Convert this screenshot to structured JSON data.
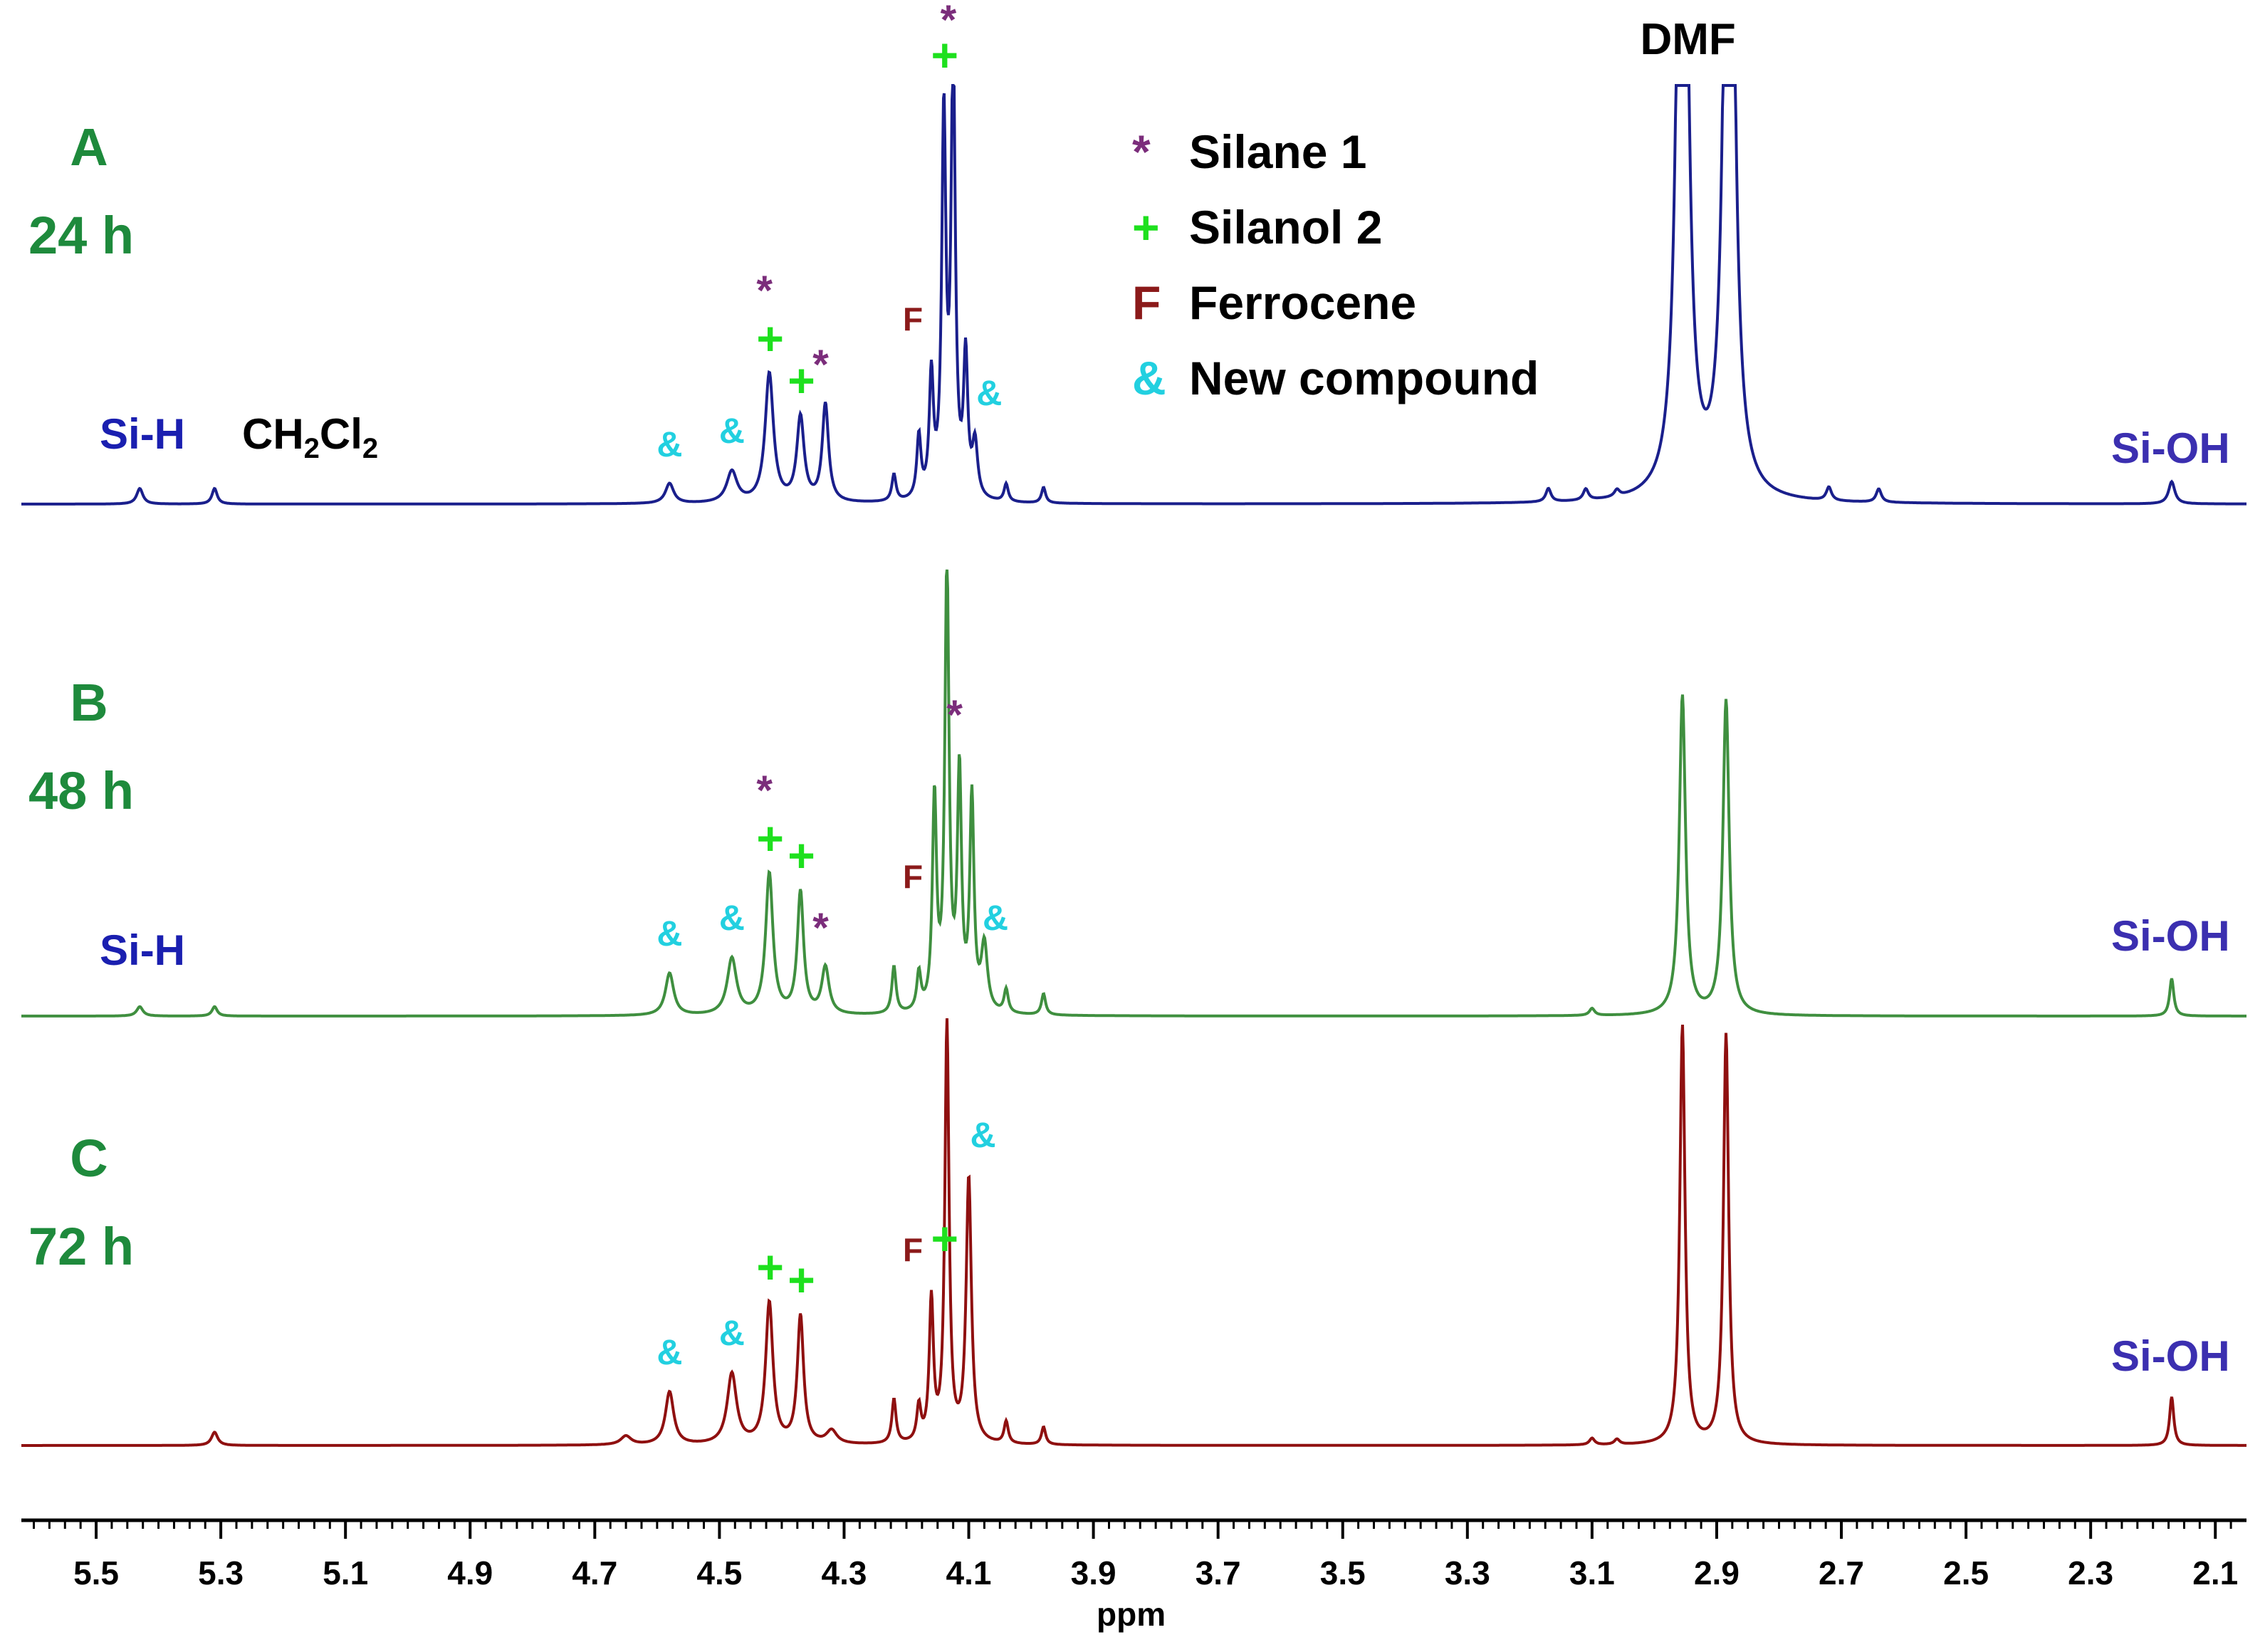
{
  "colors": {
    "spectrum_A": "#1a1f8c",
    "spectrum_B": "#3f8f3f",
    "spectrum_C": "#8f1010",
    "sample_label": "#1e8a3c",
    "silane": "#7b2d7b",
    "silanol": "#1ee01e",
    "ferrocene": "#8b1a1a",
    "new_compound": "#22d0e0",
    "si_h_label": "#1a1fb0",
    "si_oh_label": "#3b2fb0"
  },
  "samples": [
    {
      "letter": "A",
      "time": "24 h"
    },
    {
      "letter": "B",
      "time": "48 h"
    },
    {
      "letter": "C",
      "time": "72 h"
    }
  ],
  "legend": [
    {
      "symbol": "*",
      "label": "Silane 1",
      "color_key": "silane"
    },
    {
      "symbol": "+",
      "label": "Silanol 2",
      "color_key": "silanol"
    },
    {
      "symbol": "F",
      "label": "Ferrocene",
      "color_key": "ferrocene"
    },
    {
      "symbol": "&",
      "label": "New compound",
      "color_key": "new_compound"
    }
  ],
  "labels": {
    "dmf": "DMF",
    "si_h": "Si-H",
    "si_oh": "Si-OH",
    "ch2cl2_ch": "CH",
    "ch2cl2_sub1": "2",
    "ch2cl2_cl": "Cl",
    "ch2cl2_sub2": "2"
  },
  "chart_data": {
    "type": "line",
    "xlabel": "ppm",
    "xlim": [
      5.62,
      2.05
    ],
    "x_reversed": true,
    "x_ticks": [
      "5.5",
      "5.3",
      "5.1",
      "4.9",
      "4.7",
      "4.5",
      "4.3",
      "4.1",
      "3.9",
      "3.7",
      "3.5",
      "3.3",
      "3.1",
      "2.9",
      "2.7",
      "2.5",
      "2.3",
      "2.1"
    ],
    "tick_values": [
      5.5,
      5.3,
      5.1,
      4.9,
      4.7,
      4.5,
      4.3,
      4.1,
      3.9,
      3.7,
      3.5,
      3.3,
      3.1,
      2.9,
      2.7,
      2.5,
      2.3,
      2.1
    ],
    "y_units": "relative intensity (stacked spectra, DMF peaks of A truncated)",
    "series": [
      {
        "name": "A",
        "peaks": [
          {
            "ppm": 5.43,
            "h": 0.035,
            "w": 0.006
          },
          {
            "ppm": 5.31,
            "h": 0.035,
            "w": 0.005
          },
          {
            "ppm": 4.58,
            "h": 0.045,
            "w": 0.008
          },
          {
            "ppm": 4.48,
            "h": 0.07,
            "w": 0.01
          },
          {
            "ppm": 4.42,
            "h": 0.29,
            "w": 0.008
          },
          {
            "ppm": 4.37,
            "h": 0.19,
            "w": 0.007
          },
          {
            "ppm": 4.33,
            "h": 0.22,
            "w": 0.006
          },
          {
            "ppm": 4.22,
            "h": 0.06,
            "w": 0.004
          },
          {
            "ppm": 4.18,
            "h": 0.14,
            "w": 0.004
          },
          {
            "ppm": 4.16,
            "h": 0.27,
            "w": 0.004
          },
          {
            "ppm": 4.14,
            "h": 0.85,
            "w": 0.004
          },
          {
            "ppm": 4.125,
            "h": 1.0,
            "w": 0.004
          },
          {
            "ppm": 4.105,
            "h": 0.31,
            "w": 0.004
          },
          {
            "ppm": 4.09,
            "h": 0.12,
            "w": 0.005
          },
          {
            "ppm": 4.04,
            "h": 0.04,
            "w": 0.004
          },
          {
            "ppm": 3.98,
            "h": 0.035,
            "w": 0.004
          },
          {
            "ppm": 3.17,
            "h": 0.03,
            "w": 0.005
          },
          {
            "ppm": 3.11,
            "h": 0.025,
            "w": 0.005
          },
          {
            "ppm": 3.06,
            "h": 0.015,
            "w": 0.005
          },
          {
            "ppm": 2.955,
            "h": 2.5,
            "w": 0.008
          },
          {
            "ppm": 2.88,
            "h": 2.4,
            "w": 0.008
          },
          {
            "ppm": 2.72,
            "h": 0.03,
            "w": 0.005
          },
          {
            "ppm": 2.64,
            "h": 0.03,
            "w": 0.005
          },
          {
            "ppm": 2.17,
            "h": 0.05,
            "w": 0.006
          }
        ]
      },
      {
        "name": "B",
        "peaks": [
          {
            "ppm": 5.43,
            "h": 0.02,
            "w": 0.006
          },
          {
            "ppm": 5.31,
            "h": 0.02,
            "w": 0.005
          },
          {
            "ppm": 4.58,
            "h": 0.09,
            "w": 0.008
          },
          {
            "ppm": 4.48,
            "h": 0.12,
            "w": 0.009
          },
          {
            "ppm": 4.42,
            "h": 0.3,
            "w": 0.007
          },
          {
            "ppm": 4.37,
            "h": 0.26,
            "w": 0.006
          },
          {
            "ppm": 4.33,
            "h": 0.1,
            "w": 0.007
          },
          {
            "ppm": 4.22,
            "h": 0.1,
            "w": 0.004
          },
          {
            "ppm": 4.18,
            "h": 0.08,
            "w": 0.004
          },
          {
            "ppm": 4.155,
            "h": 0.45,
            "w": 0.004
          },
          {
            "ppm": 4.135,
            "h": 0.95,
            "w": 0.004
          },
          {
            "ppm": 4.115,
            "h": 0.5,
            "w": 0.004
          },
          {
            "ppm": 4.095,
            "h": 0.45,
            "w": 0.004
          },
          {
            "ppm": 4.075,
            "h": 0.14,
            "w": 0.006
          },
          {
            "ppm": 4.04,
            "h": 0.05,
            "w": 0.004
          },
          {
            "ppm": 3.98,
            "h": 0.045,
            "w": 0.004
          },
          {
            "ppm": 3.1,
            "h": 0.015,
            "w": 0.005
          },
          {
            "ppm": 2.955,
            "h": 0.68,
            "w": 0.006
          },
          {
            "ppm": 2.885,
            "h": 0.67,
            "w": 0.006
          },
          {
            "ppm": 2.17,
            "h": 0.08,
            "w": 0.004
          }
        ]
      },
      {
        "name": "C",
        "peaks": [
          {
            "ppm": 5.31,
            "h": 0.03,
            "w": 0.006
          },
          {
            "ppm": 4.65,
            "h": 0.02,
            "w": 0.01
          },
          {
            "ppm": 4.58,
            "h": 0.12,
            "w": 0.008
          },
          {
            "ppm": 4.48,
            "h": 0.16,
            "w": 0.009
          },
          {
            "ppm": 4.42,
            "h": 0.32,
            "w": 0.007
          },
          {
            "ppm": 4.37,
            "h": 0.29,
            "w": 0.006
          },
          {
            "ppm": 4.32,
            "h": 0.03,
            "w": 0.01
          },
          {
            "ppm": 4.22,
            "h": 0.1,
            "w": 0.004
          },
          {
            "ppm": 4.18,
            "h": 0.08,
            "w": 0.004
          },
          {
            "ppm": 4.16,
            "h": 0.32,
            "w": 0.004
          },
          {
            "ppm": 4.135,
            "h": 0.95,
            "w": 0.004
          },
          {
            "ppm": 4.1,
            "h": 0.6,
            "w": 0.005
          },
          {
            "ppm": 4.04,
            "h": 0.05,
            "w": 0.004
          },
          {
            "ppm": 3.98,
            "h": 0.04,
            "w": 0.004
          },
          {
            "ppm": 3.1,
            "h": 0.015,
            "w": 0.005
          },
          {
            "ppm": 3.06,
            "h": 0.012,
            "w": 0.005
          },
          {
            "ppm": 2.955,
            "h": 0.95,
            "w": 0.005
          },
          {
            "ppm": 2.885,
            "h": 0.93,
            "w": 0.005
          },
          {
            "ppm": 2.17,
            "h": 0.11,
            "w": 0.004
          }
        ]
      }
    ],
    "annotations": [
      {
        "spectrum": "A",
        "symbol": "*",
        "kind": "silane",
        "ppm": 4.125
      },
      {
        "spectrum": "A",
        "symbol": "+",
        "kind": "silanol",
        "ppm": 4.14
      },
      {
        "spectrum": "A",
        "symbol": "+",
        "kind": "silanol",
        "ppm": 4.42
      },
      {
        "spectrum": "A",
        "symbol": "*",
        "kind": "silane",
        "ppm": 4.42
      },
      {
        "spectrum": "A",
        "symbol": "+",
        "kind": "silanol",
        "ppm": 4.37
      },
      {
        "spectrum": "A",
        "symbol": "*",
        "kind": "silane",
        "ppm": 4.33
      },
      {
        "spectrum": "A",
        "symbol": "F",
        "kind": "ferrocene",
        "ppm": 4.16
      },
      {
        "spectrum": "A",
        "symbol": "&",
        "kind": "new_compound",
        "ppm": 4.09
      },
      {
        "spectrum": "A",
        "symbol": "&",
        "kind": "new_compound",
        "ppm": 4.58
      },
      {
        "spectrum": "A",
        "symbol": "&",
        "kind": "new_compound",
        "ppm": 4.48
      },
      {
        "spectrum": "B",
        "symbol": "+",
        "kind": "silanol",
        "ppm": 4.42
      },
      {
        "spectrum": "B",
        "symbol": "*",
        "kind": "silane",
        "ppm": 4.42
      },
      {
        "spectrum": "B",
        "symbol": "+",
        "kind": "silanol",
        "ppm": 4.37
      },
      {
        "spectrum": "B",
        "symbol": "*",
        "kind": "silane",
        "ppm": 4.33
      },
      {
        "spectrum": "B",
        "symbol": "F",
        "kind": "ferrocene",
        "ppm": 4.16
      },
      {
        "spectrum": "B",
        "symbol": "*",
        "kind": "silane",
        "ppm": 4.115
      },
      {
        "spectrum": "B",
        "symbol": "&",
        "kind": "new_compound",
        "ppm": 4.08
      },
      {
        "spectrum": "B",
        "symbol": "&",
        "kind": "new_compound",
        "ppm": 4.58
      },
      {
        "spectrum": "B",
        "symbol": "&",
        "kind": "new_compound",
        "ppm": 4.48
      },
      {
        "spectrum": "C",
        "symbol": "+",
        "kind": "silanol",
        "ppm": 4.14
      },
      {
        "spectrum": "C",
        "symbol": "&",
        "kind": "new_compound",
        "ppm": 4.1
      },
      {
        "spectrum": "C",
        "symbol": "+",
        "kind": "silanol",
        "ppm": 4.42
      },
      {
        "spectrum": "C",
        "symbol": "+",
        "kind": "silanol",
        "ppm": 4.37
      },
      {
        "spectrum": "C",
        "symbol": "F",
        "kind": "ferrocene",
        "ppm": 4.16
      },
      {
        "spectrum": "C",
        "symbol": "&",
        "kind": "new_compound",
        "ppm": 4.58
      },
      {
        "spectrum": "C",
        "symbol": "&",
        "kind": "new_compound",
        "ppm": 4.48
      }
    ]
  }
}
